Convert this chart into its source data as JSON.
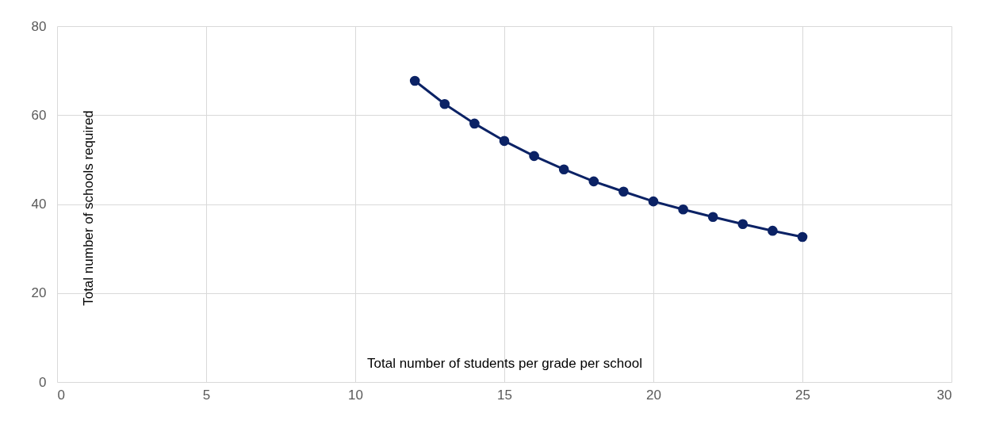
{
  "chart_data": {
    "type": "line",
    "xlabel": "Total number of students per grade per school",
    "ylabel": "Total number of schools required",
    "x": [
      12,
      13,
      14,
      15,
      16,
      17,
      18,
      19,
      20,
      21,
      22,
      23,
      24,
      25
    ],
    "series": [
      {
        "color": "#0b2265",
        "values": [
          67.7,
          62.5,
          58.1,
          54.2,
          50.8,
          47.8,
          45.1,
          42.8,
          40.6,
          38.8,
          37.1,
          35.5,
          34.0,
          32.6
        ]
      }
    ],
    "xlim": [
      0,
      30
    ],
    "xticks": [
      0,
      5,
      10,
      15,
      20,
      25,
      30
    ],
    "ylim": [
      0,
      80
    ],
    "yticks": [
      0,
      20,
      40,
      60,
      80
    ],
    "grid": true,
    "marker": "circle",
    "line_style": "solid"
  }
}
